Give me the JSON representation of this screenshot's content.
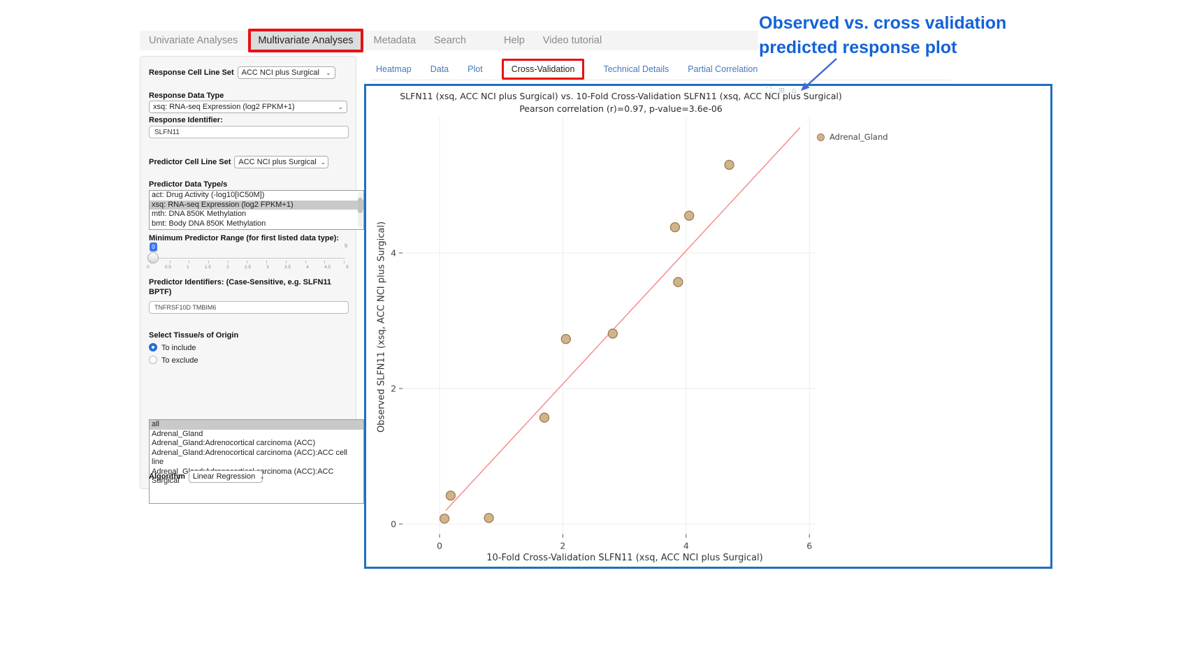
{
  "nav": {
    "items": [
      "Univariate Analyses",
      "Multivariate Analyses",
      "Metadata",
      "Search",
      "Help",
      "Video tutorial"
    ],
    "active": "Multivariate Analyses"
  },
  "tabs": {
    "items": [
      "Heatmap",
      "Data",
      "Plot",
      "Cross-Validation",
      "Technical Details",
      "Partial Correlation"
    ],
    "active": "Cross-Validation"
  },
  "sidebar": {
    "response_cell_line_set": {
      "label": "Response Cell Line Set",
      "value": "ACC NCI plus Surgical"
    },
    "response_data_type": {
      "label": "Response Data Type",
      "value": "xsq: RNA-seq Expression (log2 FPKM+1)"
    },
    "response_identifier": {
      "label": "Response Identifier:",
      "value": "SLFN11"
    },
    "predictor_cell_line_set": {
      "label": "Predictor Cell Line Set",
      "value": "ACC NCI plus Surgical"
    },
    "predictor_data_types": {
      "label": "Predictor Data Type/s",
      "options": [
        "act: Drug Activity (-log10[IC50M])",
        "xsq: RNA-seq Expression (log2 FPKM+1)",
        "mth: DNA 850K Methylation",
        "bmt: Body DNA 850K Methylation"
      ],
      "selected": "xsq: RNA-seq Expression (log2 FPKM+1)"
    },
    "min_predictor_range": {
      "label": "Minimum Predictor Range (for first listed data type):",
      "value": "0",
      "max_label": "5",
      "ticks": [
        "0",
        "0.5",
        "1",
        "1.5",
        "2",
        "2.5",
        "3",
        "3.5",
        "4",
        "4.5",
        "5"
      ]
    },
    "predictor_identifiers": {
      "label": "Predictor Identifiers: (Case-Sensitive, e.g. SLFN11 BPTF)",
      "value": "TNFRSF10D TMBIM6"
    },
    "tissue_origin": {
      "label": "Select Tissue/s of Origin",
      "options": [
        "To include",
        "To exclude"
      ],
      "selected": "To include"
    },
    "tissue_list": {
      "options": [
        "all",
        "Adrenal_Gland",
        "Adrenal_Gland:Adrenocortical carcinoma (ACC)",
        "Adrenal_Gland:Adrenocortical carcinoma (ACC):ACC cell line",
        "Adrenal_Gland:Adrenocortical carcinoma (ACC):ACC Surgical"
      ],
      "selected": "all"
    },
    "algorithm": {
      "label": "Algorithm",
      "value": "Linear Regression"
    }
  },
  "toolbar": {
    "icons": [
      {
        "name": "camera-icon",
        "glyph": "⛶"
      },
      {
        "name": "zoom-icon",
        "glyph": "⊞"
      },
      {
        "name": "home-icon",
        "glyph": "⌂"
      }
    ]
  },
  "annotation": {
    "line1": "Observed vs. cross validation",
    "line2": "predicted response plot"
  },
  "colors": {
    "highlight_red": "#e81014",
    "plot_border_blue": "#1f6fbe",
    "annotation_blue": "#1362d9",
    "tab_link_blue": "#4779bd",
    "point_fill": "#d2b48c",
    "point_stroke": "#9c7b52",
    "trendline_pink": "#f98b8b"
  },
  "chart_data": {
    "type": "scatter",
    "title": "SLFN11 (xsq, ACC NCI plus Surgical) vs. 10-Fold Cross-Validation SLFN11 (xsq, ACC NCI plus Surgical)",
    "subtitle": "Pearson correlation (r)=0.97, p-value=3.6e-06",
    "xlabel": "10-Fold Cross-Validation SLFN11 (xsq, ACC NCI plus Surgical)",
    "ylabel": "Observed SLFN11 (xsq, ACC NCI plus Surgical)",
    "xlim": [
      -0.6,
      6.1
    ],
    "ylim": [
      -0.15,
      6.0
    ],
    "xticks": [
      0,
      2,
      4,
      6
    ],
    "yticks": [
      0,
      2,
      4
    ],
    "grid": true,
    "legend_position": "top-right-outside",
    "series": [
      {
        "name": "Adrenal_Gland",
        "color": "#d2b48c",
        "stroke": "#9c7b52",
        "points": [
          [
            0.08,
            0.08
          ],
          [
            0.18,
            0.42
          ],
          [
            0.8,
            0.09
          ],
          [
            1.7,
            1.57
          ],
          [
            2.05,
            2.73
          ],
          [
            2.81,
            2.81
          ],
          [
            3.87,
            3.57
          ],
          [
            3.82,
            4.38
          ],
          [
            4.05,
            4.55
          ],
          [
            4.7,
            5.3
          ]
        ]
      }
    ],
    "trendline": {
      "from": [
        0.1,
        0.2
      ],
      "to": [
        5.85,
        5.85
      ],
      "color": "#f98b8b"
    }
  }
}
